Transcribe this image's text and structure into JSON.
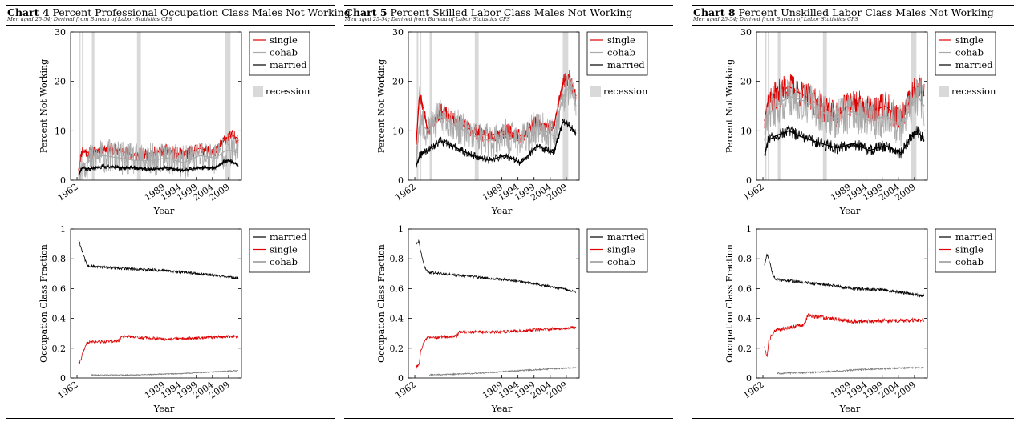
{
  "panels": [
    {
      "chart_label": "Chart 4",
      "title": "Percent Professional Occupation Class Males Not Working",
      "subtitle": "Men aged 25-54; Derived from Bureau of Labor Statistics CPS",
      "seed": 11,
      "chart_data": [
        {
          "type": "line",
          "xlabel": "Year",
          "ylabel": "Percent Not Working",
          "xlim": [
            1960,
            2013
          ],
          "ylim": [
            0,
            30
          ],
          "yticks": [
            0,
            10,
            20,
            30
          ],
          "xticks": [
            "1962",
            "1989",
            "1994",
            "1999",
            "2004",
            "2009"
          ],
          "xtick_values": [
            1962,
            1989,
            1994,
            1999,
            2004,
            2009
          ],
          "recessions": [
            [
              1962.6,
              1963.1
            ],
            [
              1963.5,
              1964.0
            ],
            [
              1966.6,
              1967.4
            ],
            [
              1980.6,
              1981.8
            ],
            [
              2007.9,
              2009.6
            ]
          ],
          "recession_label": "recession",
          "legend_position": "right",
          "series": [
            {
              "name": "single",
              "color": "#dd0000",
              "noise": 1.3,
              "x": [
                1962.5,
                1963.5,
                1966,
                1970,
                1975,
                1980,
                1985,
                1990,
                1995,
                2000,
                2005,
                2008,
                2010,
                2012
              ],
              "y": [
                2,
                6,
                5.5,
                6.5,
                6.0,
                5.0,
                5.5,
                6.0,
                5.0,
                6.5,
                5.5,
                8.5,
                9.0,
                8.5
              ]
            },
            {
              "name": "cohab",
              "color": "#aaaaaa",
              "noise": 3.5,
              "x": [
                1962.5,
                1963.5,
                1966,
                1970,
                1975,
                1980,
                1985,
                1990,
                1995,
                2000,
                2005,
                2008,
                2010,
                2012
              ],
              "y": [
                0,
                3,
                4,
                5,
                4.5,
                4.0,
                4.0,
                4.5,
                3.5,
                5.0,
                4.5,
                6.0,
                6.0,
                5.5
              ]
            },
            {
              "name": "married",
              "color": "#000000",
              "noise": 0.45,
              "x": [
                1962.5,
                1963.5,
                1966,
                1970,
                1975,
                1980,
                1985,
                1990,
                1995,
                2000,
                2005,
                2008,
                2010,
                2012
              ],
              "y": [
                1,
                2.5,
                2.3,
                2.8,
                2.5,
                2.5,
                2.2,
                2.5,
                2.0,
                2.5,
                2.5,
                4.0,
                3.8,
                3.0
              ]
            }
          ]
        },
        {
          "type": "line",
          "xlabel": "Year",
          "ylabel": "Occupation Class Fraction",
          "xlim": [
            1960,
            2013
          ],
          "ylim": [
            0,
            1
          ],
          "yticks": [
            0,
            0.2,
            0.4,
            0.6,
            0.8,
            1
          ],
          "xticks": [
            "1962",
            "1989",
            "1994",
            "1999",
            "2004",
            "2009"
          ],
          "xtick_values": [
            1962,
            1989,
            1994,
            1999,
            2004,
            2009
          ],
          "legend_position": "right",
          "series": [
            {
              "name": "married",
              "color": "#000000",
              "noise": 0.009,
              "x": [
                1962.5,
                1963.2,
                1963.8,
                1965,
                1966,
                1980,
                1990,
                2000,
                2012
              ],
              "y": [
                0.93,
                0.88,
                0.84,
                0.76,
                0.75,
                0.73,
                0.72,
                0.7,
                0.67
              ]
            },
            {
              "name": "single",
              "color": "#dd0000",
              "noise": 0.01,
              "x": [
                1962.5,
                1963.2,
                1963.8,
                1965,
                1966,
                1975,
                1975.8,
                1990,
                2012
              ],
              "y": [
                0.1,
                0.12,
                0.17,
                0.23,
                0.24,
                0.25,
                0.28,
                0.26,
                0.28
              ]
            },
            {
              "name": "cohab",
              "color": "#777777",
              "noise": 0.003,
              "x": [
                1966.5,
                1980,
                1995,
                2012
              ],
              "y": [
                0.02,
                0.02,
                0.03,
                0.05
              ]
            }
          ]
        }
      ]
    },
    {
      "chart_label": "Chart 5",
      "title": "Percent Skilled Labor Class Males Not Working",
      "subtitle": "Men aged 25-54; Derived from Bureau of Labor Statistics CPS",
      "seed": 23,
      "chart_data": [
        {
          "type": "line",
          "xlabel": "Year",
          "ylabel": "Percent Not Working",
          "xlim": [
            1960,
            2013
          ],
          "ylim": [
            0,
            30
          ],
          "yticks": [
            0,
            10,
            20,
            30
          ],
          "xticks": [
            "1962",
            "1989",
            "1994",
            "1999",
            "2004",
            "2009"
          ],
          "xtick_values": [
            1962,
            1989,
            1994,
            1999,
            2004,
            2009
          ],
          "recessions": [
            [
              1962.6,
              1963.1
            ],
            [
              1963.5,
              1964.0
            ],
            [
              1966.6,
              1967.4
            ],
            [
              1980.6,
              1981.8
            ],
            [
              2007.9,
              2009.6
            ]
          ],
          "recession_label": "recession",
          "legend_position": "right",
          "series": [
            {
              "name": "single",
              "color": "#dd0000",
              "noise": 1.6,
              "x": [
                1962.5,
                1963.5,
                1966,
                1970,
                1975,
                1980,
                1985,
                1990,
                1995,
                2000,
                2005,
                2008,
                2010,
                2012
              ],
              "y": [
                8,
                18,
                10,
                14,
                12,
                10,
                9,
                10,
                9,
                12,
                10.5,
                20,
                21,
                17
              ]
            },
            {
              "name": "cohab",
              "color": "#aaaaaa",
              "noise": 3.5,
              "x": [
                1962.5,
                1963.5,
                1966,
                1970,
                1975,
                1980,
                1985,
                1990,
                1995,
                2000,
                2005,
                2008,
                2010,
                2012
              ],
              "y": [
                5,
                12,
                10,
                13,
                11,
                9,
                8,
                9,
                8,
                11,
                9,
                17,
                19,
                15
              ]
            },
            {
              "name": "married",
              "color": "#000000",
              "noise": 0.8,
              "x": [
                1962.5,
                1963.5,
                1966,
                1970,
                1975,
                1980,
                1985,
                1990,
                1995,
                2000,
                2005,
                2008,
                2010,
                2012
              ],
              "y": [
                3,
                5,
                6,
                8,
                6.5,
                5,
                4,
                5,
                3.5,
                7,
                5.5,
                12,
                11,
                9.5
              ]
            }
          ]
        },
        {
          "type": "line",
          "xlabel": "Year",
          "ylabel": "Occupation Class Fraction",
          "xlim": [
            1960,
            2013
          ],
          "ylim": [
            0,
            1
          ],
          "yticks": [
            0,
            0.2,
            0.4,
            0.6,
            0.8,
            1
          ],
          "xticks": [
            "1962",
            "1989",
            "1994",
            "1999",
            "2004",
            "2009"
          ],
          "xtick_values": [
            1962,
            1989,
            1994,
            1999,
            2004,
            2009
          ],
          "legend_position": "right",
          "series": [
            {
              "name": "married",
              "color": "#000000",
              "noise": 0.008,
              "x": [
                1962.5,
                1963.3,
                1963.8,
                1965,
                1966,
                1975,
                1990,
                2000,
                2012
              ],
              "y": [
                0.9,
                0.92,
                0.85,
                0.75,
                0.71,
                0.69,
                0.66,
                0.63,
                0.58
              ]
            },
            {
              "name": "single",
              "color": "#dd0000",
              "noise": 0.01,
              "x": [
                1962.5,
                1963.3,
                1963.8,
                1965,
                1966,
                1975,
                1975.8,
                1990,
                2012
              ],
              "y": [
                0.07,
                0.09,
                0.18,
                0.25,
                0.27,
                0.28,
                0.31,
                0.31,
                0.34
              ]
            },
            {
              "name": "cohab",
              "color": "#777777",
              "noise": 0.004,
              "x": [
                1966.5,
                1980,
                1995,
                2012
              ],
              "y": [
                0.02,
                0.03,
                0.05,
                0.07
              ]
            }
          ]
        }
      ]
    },
    {
      "chart_label": "Chart 8",
      "title": "Percent Unskilled Labor Class Males Not Working",
      "subtitle": "Men aged 25-54; Derived from Bureau of Labor Statistics CPS",
      "seed": 37,
      "chart_data": [
        {
          "type": "line",
          "xlabel": "Year",
          "ylabel": "Percent Not Working",
          "xlim": [
            1960,
            2013
          ],
          "ylim": [
            0,
            30
          ],
          "yticks": [
            0,
            10,
            20,
            30
          ],
          "xticks": [
            "1962",
            "1989",
            "1994",
            "1999",
            "2004",
            "2009"
          ],
          "xtick_values": [
            1962,
            1989,
            1994,
            1999,
            2004,
            2009
          ],
          "recessions": [
            [
              1962.6,
              1963.1
            ],
            [
              1963.5,
              1964.0
            ],
            [
              1966.6,
              1967.4
            ],
            [
              1980.6,
              1981.8
            ],
            [
              2007.9,
              2009.6
            ]
          ],
          "recession_label": "recession",
          "legend_position": "right",
          "series": [
            {
              "name": "single",
              "color": "#dd0000",
              "noise": 3.0,
              "x": [
                1962.5,
                1963.5,
                1966,
                1970,
                1975,
                1980,
                1985,
                1990,
                1995,
                2000,
                2005,
                2008,
                2010,
                2012
              ],
              "y": [
                12,
                16,
                17,
                19,
                17,
                15,
                13,
                16,
                14,
                15,
                12,
                17,
                19,
                17
              ]
            },
            {
              "name": "cohab",
              "color": "#aaaaaa",
              "noise": 4.2,
              "x": [
                1962.5,
                1963.5,
                1966,
                1970,
                1975,
                1980,
                1985,
                1990,
                1995,
                2000,
                2005,
                2008,
                2010,
                2012
              ],
              "y": [
                8,
                13,
                15,
                17,
                16,
                14,
                12,
                14,
                12,
                13,
                11,
                15,
                17,
                15
              ]
            },
            {
              "name": "married",
              "color": "#000000",
              "noise": 1.2,
              "x": [
                1962.5,
                1963.5,
                1966,
                1970,
                1975,
                1980,
                1985,
                1990,
                1995,
                2000,
                2005,
                2008,
                2010,
                2012
              ],
              "y": [
                5,
                8,
                9,
                10,
                8.5,
                7.5,
                6.5,
                7.5,
                6,
                7,
                5.5,
                9,
                10,
                8
              ]
            }
          ]
        },
        {
          "type": "line",
          "xlabel": "Year",
          "ylabel": "Occupation Class Fraction",
          "xlim": [
            1960,
            2013
          ],
          "ylim": [
            0,
            1
          ],
          "yticks": [
            0,
            0.2,
            0.4,
            0.6,
            0.8,
            1
          ],
          "xticks": [
            "1962",
            "1989",
            "1994",
            "1999",
            "2004",
            "2009"
          ],
          "xtick_values": [
            1962,
            1989,
            1994,
            1999,
            2004,
            2009
          ],
          "legend_position": "right",
          "series": [
            {
              "name": "married",
              "color": "#000000",
              "noise": 0.01,
              "x": [
                1962.5,
                1963.3,
                1963.8,
                1965,
                1966,
                1980,
                1990,
                2000,
                2012
              ],
              "y": [
                0.76,
                0.83,
                0.8,
                0.7,
                0.66,
                0.63,
                0.6,
                0.59,
                0.55
              ]
            },
            {
              "name": "single",
              "color": "#dd0000",
              "noise": 0.013,
              "x": [
                1962.5,
                1963.3,
                1963.8,
                1965,
                1966,
                1975,
                1975.8,
                1990,
                2012
              ],
              "y": [
                0.2,
                0.15,
                0.25,
                0.3,
                0.32,
                0.36,
                0.42,
                0.38,
                0.39
              ]
            },
            {
              "name": "cohab",
              "color": "#777777",
              "noise": 0.005,
              "x": [
                1966.5,
                1980,
                1995,
                2012
              ],
              "y": [
                0.03,
                0.04,
                0.06,
                0.07
              ]
            }
          ]
        }
      ]
    }
  ]
}
